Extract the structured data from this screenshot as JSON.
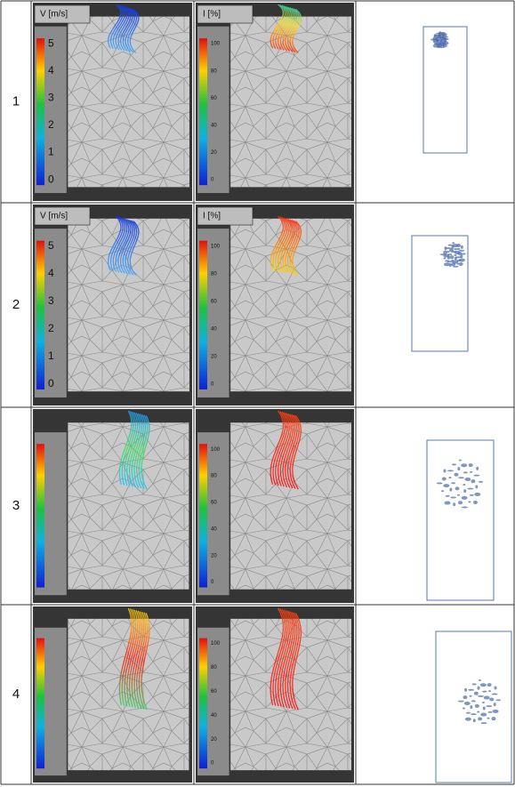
{
  "rows": [
    {
      "number": "1",
      "velocity": {
        "label": "V [m/s]",
        "ticks": [
          "5",
          "4",
          "3",
          "2",
          "1",
          "0"
        ]
      },
      "intensity": {
        "label": "I [%]",
        "ticks": [
          "100",
          "80",
          "60",
          "40",
          "20",
          "0"
        ]
      }
    },
    {
      "number": "2",
      "velocity": {
        "label": "V [m/s]",
        "ticks": [
          "5",
          "4",
          "3",
          "2",
          "1",
          "0"
        ]
      },
      "intensity": {
        "label": "I [%]",
        "ticks": [
          "100",
          "80",
          "60",
          "40",
          "20",
          "0"
        ]
      }
    },
    {
      "number": "3",
      "intensity": {
        "ticks": [
          "100",
          "80",
          "60",
          "40",
          "20",
          "0"
        ]
      }
    },
    {
      "number": "4",
      "intensity": {
        "ticks": [
          "100",
          "80",
          "60",
          "40",
          "20",
          "0"
        ]
      }
    }
  ]
}
